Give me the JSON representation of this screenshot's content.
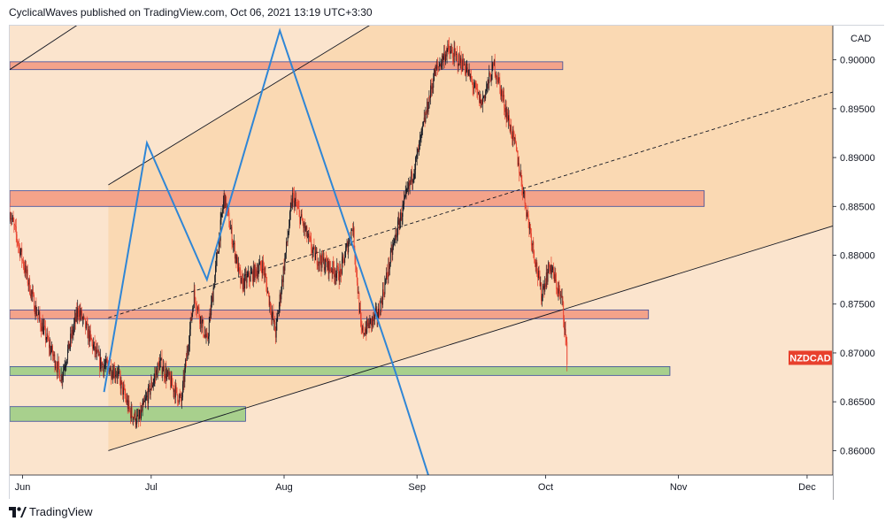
{
  "header": {
    "publisher_line": "CyclicalWaves published on TradingView.com, Oct 06, 2021 13:19 UTC+3:30"
  },
  "footer": {
    "brand": "TradingView"
  },
  "colors": {
    "channel_fill": "#fad9b3",
    "background_fill": "#fbe4cd",
    "candle_up": "#131722",
    "candle_down": "#e8402d",
    "resistance_zone": "#f4a38a",
    "resistance_zone_border": "#3a4a9a",
    "support_zone": "#a8d08d",
    "wave_line": "#2f86d6",
    "symbol_badge": "#e8402d"
  },
  "chart_data": {
    "type": "candlestick",
    "symbol": "NZDCAD",
    "currency_label": "CAD",
    "y_axis": {
      "ylim": [
        0.8575,
        0.9035
      ],
      "tick_labels": [
        "0.90000",
        "0.89500",
        "0.89000",
        "0.88500",
        "0.88000",
        "0.87500",
        "0.87000",
        "0.86500",
        "0.86000"
      ],
      "tick_values": [
        0.9,
        0.895,
        0.89,
        0.885,
        0.88,
        0.875,
        0.87,
        0.865,
        0.86
      ]
    },
    "x_axis": {
      "tick_labels": [
        "Jun",
        "Jul",
        "Aug",
        "Sep",
        "Oct",
        "Nov",
        "Dec"
      ],
      "tick_dates": [
        "2021-06-01",
        "2021-07-01",
        "2021-08-01",
        "2021-09-01",
        "2021-10-01",
        "2021-11-01",
        "2021-12-01"
      ],
      "range": [
        "2021-05-29",
        "2021-12-07"
      ]
    },
    "last_price": 0.8695,
    "price_path": [
      [
        "2021-05-29",
        0.8845
      ],
      [
        "2021-06-04",
        0.8745
      ],
      [
        "2021-06-10",
        0.8675
      ],
      [
        "2021-06-14",
        0.8745
      ],
      [
        "2021-06-19",
        0.869
      ],
      [
        "2021-06-23",
        0.868
      ],
      [
        "2021-06-26",
        0.864
      ],
      [
        "2021-06-28",
        0.863
      ],
      [
        "2021-07-03",
        0.869
      ],
      [
        "2021-07-08",
        0.865
      ],
      [
        "2021-07-11",
        0.876
      ],
      [
        "2021-07-14",
        0.871
      ],
      [
        "2021-07-18",
        0.886
      ],
      [
        "2021-07-22",
        0.877
      ],
      [
        "2021-07-27",
        0.879
      ],
      [
        "2021-07-30",
        0.872
      ],
      [
        "2021-08-03",
        0.886
      ],
      [
        "2021-08-08",
        0.88
      ],
      [
        "2021-08-14",
        0.878
      ],
      [
        "2021-08-17",
        0.883
      ],
      [
        "2021-08-19",
        0.872
      ],
      [
        "2021-08-23",
        0.874
      ],
      [
        "2021-08-27",
        0.882
      ],
      [
        "2021-09-01",
        0.89
      ],
      [
        "2021-09-05",
        0.8985
      ],
      [
        "2021-09-08",
        0.901
      ],
      [
        "2021-09-12",
        0.8995
      ],
      [
        "2021-09-16",
        0.8955
      ],
      [
        "2021-09-19",
        0.8995
      ],
      [
        "2021-09-24",
        0.891
      ],
      [
        "2021-09-26",
        0.886
      ],
      [
        "2021-09-30",
        0.876
      ],
      [
        "2021-10-02",
        0.879
      ],
      [
        "2021-10-05",
        0.875
      ],
      [
        "2021-10-06",
        0.8695
      ]
    ],
    "zones": [
      {
        "kind": "resistance",
        "top": 0.8998,
        "bottom": 0.899,
        "x_start": "2021-05-29",
        "x_end": "2021-10-05"
      },
      {
        "kind": "resistance",
        "top": 0.8866,
        "bottom": 0.885,
        "x_start": "2021-05-29",
        "x_end": "2021-11-07"
      },
      {
        "kind": "resistance",
        "top": 0.8744,
        "bottom": 0.8735,
        "x_start": "2021-05-29",
        "x_end": "2021-10-25"
      },
      {
        "kind": "support",
        "top": 0.8686,
        "bottom": 0.8677,
        "x_start": "2021-05-29",
        "x_end": "2021-10-30"
      },
      {
        "kind": "support",
        "top": 0.8645,
        "bottom": 0.863,
        "x_start": "2021-05-29",
        "x_end": "2021-07-23"
      }
    ],
    "channel": {
      "upper": [
        [
          "2021-06-21",
          0.8872
        ],
        [
          "2021-12-07",
          0.9325
        ]
      ],
      "lower": [
        [
          "2021-06-21",
          0.86
        ],
        [
          "2021-12-07",
          0.883
        ]
      ],
      "outer_upper": [
        [
          "2021-05-29",
          0.899
        ],
        [
          "2021-07-25",
          0.9155
        ]
      ]
    },
    "midline": [
      [
        "2021-06-21",
        0.8736
      ],
      [
        "2021-12-07",
        0.8967
      ]
    ],
    "wave_path": [
      [
        "2021-06-20",
        0.866
      ],
      [
        "2021-06-30",
        0.8915
      ],
      [
        "2021-07-14",
        0.8775
      ],
      [
        "2021-07-31",
        0.903
      ],
      [
        "2021-08-27",
        0.868
      ],
      [
        "2021-09-04",
        0.857
      ]
    ]
  }
}
